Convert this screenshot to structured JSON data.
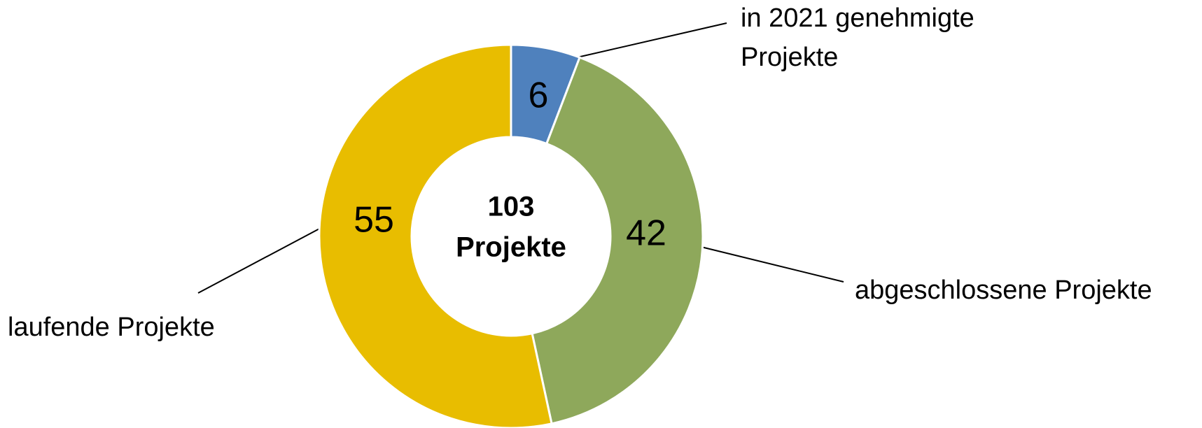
{
  "chart_data": {
    "type": "donut",
    "categories": [
      "in 2021 genehmigte Projekte",
      "abgeschlossene Projekte",
      "laufende Projekte"
    ],
    "values": [
      6,
      42,
      55
    ],
    "colors": [
      "#4f81bd",
      "#8ea85b",
      "#e8bd00"
    ],
    "center_text": [
      "103",
      "Projekte"
    ]
  }
}
